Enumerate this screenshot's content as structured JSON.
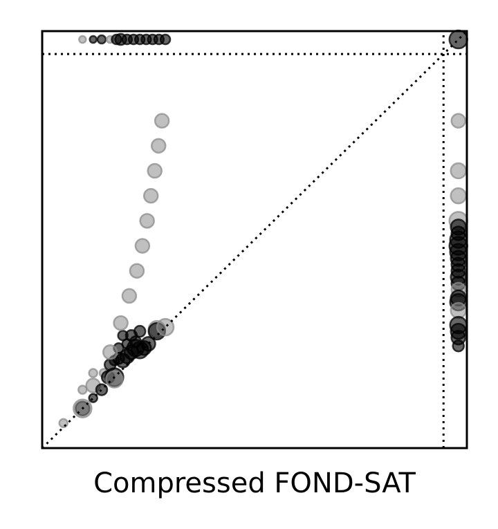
{
  "chart_data": {
    "type": "scatter",
    "title": "",
    "xlabel": "Compressed FOND-SAT",
    "ylabel": "",
    "xlim": [
      0,
      100
    ],
    "ylim": [
      0,
      100
    ],
    "grid": false,
    "legend": "none",
    "timeout_line": 94.5,
    "timeout_value": 98,
    "diagonal": true,
    "colors": {
      "dark": "#000000",
      "light": "#8c8c8c"
    },
    "series": [
      {
        "points": [
          {
            "x": 5,
            "y": 6,
            "s": 6,
            "c": "light"
          },
          {
            "x": 9.5,
            "y": 9.5,
            "s": 10,
            "c": "dark"
          },
          {
            "x": 9.5,
            "y": 9.5,
            "s": 13,
            "c": "light"
          },
          {
            "x": 12,
            "y": 12,
            "s": 6,
            "c": "dark"
          },
          {
            "x": 9.5,
            "y": 14,
            "s": 6,
            "c": "light"
          },
          {
            "x": 12,
            "y": 15,
            "s": 10,
            "c": "light"
          },
          {
            "x": 14,
            "y": 14,
            "s": 8,
            "c": "dark"
          },
          {
            "x": 12,
            "y": 18,
            "s": 6,
            "c": "light"
          },
          {
            "x": 14.5,
            "y": 18,
            "s": 6,
            "c": "light"
          },
          {
            "x": 15.5,
            "y": 17,
            "s": 9,
            "c": "dark"
          },
          {
            "x": 17,
            "y": 17,
            "s": 13,
            "c": "dark"
          },
          {
            "x": 17,
            "y": 16.5,
            "s": 12,
            "c": "light"
          },
          {
            "x": 16,
            "y": 20,
            "s": 8,
            "c": "dark"
          },
          {
            "x": 17,
            "y": 21,
            "s": 7,
            "c": "dark"
          },
          {
            "x": 18,
            "y": 21.5,
            "s": 8,
            "c": "dark"
          },
          {
            "x": 19,
            "y": 21,
            "s": 10,
            "c": "dark"
          },
          {
            "x": 20,
            "y": 22,
            "s": 10,
            "c": "dark"
          },
          {
            "x": 21,
            "y": 23,
            "s": 10,
            "c": "dark"
          },
          {
            "x": 22,
            "y": 24,
            "s": 12,
            "c": "dark"
          },
          {
            "x": 23,
            "y": 23.5,
            "s": 12,
            "c": "dark"
          },
          {
            "x": 24,
            "y": 24,
            "s": 10,
            "c": "dark"
          },
          {
            "x": 25,
            "y": 25,
            "s": 10,
            "c": "dark"
          },
          {
            "x": 22,
            "y": 25.5,
            "s": 8,
            "c": "dark"
          },
          {
            "x": 20,
            "y": 25,
            "s": 7,
            "c": "dark"
          },
          {
            "x": 18,
            "y": 24,
            "s": 7,
            "c": "dark"
          },
          {
            "x": 16,
            "y": 23,
            "s": 10,
            "c": "light"
          },
          {
            "x": 19,
            "y": 27,
            "s": 7,
            "c": "dark"
          },
          {
            "x": 21,
            "y": 27,
            "s": 8,
            "c": "dark"
          },
          {
            "x": 23,
            "y": 28,
            "s": 8,
            "c": "dark"
          },
          {
            "x": 27,
            "y": 28.5,
            "s": 12,
            "c": "light"
          },
          {
            "x": 27,
            "y": 28,
            "s": 12,
            "c": "dark"
          },
          {
            "x": 29,
            "y": 29,
            "s": 12,
            "c": "light"
          },
          {
            "x": 18.5,
            "y": 30,
            "s": 10,
            "c": "light"
          },
          {
            "x": 20.5,
            "y": 36.5,
            "s": 10,
            "c": "light"
          },
          {
            "x": 22.3,
            "y": 42.5,
            "s": 10,
            "c": "light"
          },
          {
            "x": 23.6,
            "y": 48.5,
            "s": 10,
            "c": "light"
          },
          {
            "x": 24.7,
            "y": 54.5,
            "s": 10,
            "c": "light"
          },
          {
            "x": 25.6,
            "y": 60.5,
            "s": 10,
            "c": "light"
          },
          {
            "x": 26.5,
            "y": 66.5,
            "s": 10,
            "c": "light"
          },
          {
            "x": 27.4,
            "y": 72.5,
            "s": 10,
            "c": "light"
          },
          {
            "x": 28.2,
            "y": 78.5,
            "s": 10,
            "c": "light"
          },
          {
            "x": 98,
            "y": 98,
            "s": 13,
            "c": "dark"
          },
          {
            "x": 98,
            "y": 78.5,
            "s": 10,
            "c": "light"
          },
          {
            "x": 98,
            "y": 66.5,
            "s": 11,
            "c": "light"
          },
          {
            "x": 98,
            "y": 60.5,
            "s": 11,
            "c": "light"
          },
          {
            "x": 98,
            "y": 54.5,
            "s": 13,
            "c": "light"
          },
          {
            "x": 98,
            "y": 53,
            "s": 11,
            "c": "dark"
          },
          {
            "x": 98,
            "y": 51.5,
            "s": 10,
            "c": "dark"
          },
          {
            "x": 98,
            "y": 50,
            "s": 12,
            "c": "dark"
          },
          {
            "x": 98,
            "y": 48.5,
            "s": 13,
            "c": "dark"
          },
          {
            "x": 98,
            "y": 47,
            "s": 12,
            "c": "dark"
          },
          {
            "x": 98,
            "y": 45.5,
            "s": 11,
            "c": "dark"
          },
          {
            "x": 98,
            "y": 44,
            "s": 10,
            "c": "dark"
          },
          {
            "x": 98,
            "y": 42.5,
            "s": 10,
            "c": "dark"
          },
          {
            "x": 98,
            "y": 41,
            "s": 11,
            "c": "dark"
          },
          {
            "x": 98,
            "y": 39.5,
            "s": 10,
            "c": "dark"
          },
          {
            "x": 98,
            "y": 38,
            "s": 10,
            "c": "light"
          },
          {
            "x": 98,
            "y": 36,
            "s": 11,
            "c": "dark"
          },
          {
            "x": 98,
            "y": 35,
            "s": 12,
            "c": "dark"
          },
          {
            "x": 98,
            "y": 33,
            "s": 11,
            "c": "light"
          },
          {
            "x": 98,
            "y": 29.5,
            "s": 12,
            "c": "dark"
          },
          {
            "x": 98,
            "y": 28,
            "s": 11,
            "c": "dark"
          },
          {
            "x": 98,
            "y": 26.5,
            "s": 10,
            "c": "dark"
          },
          {
            "x": 98,
            "y": 24.5,
            "s": 8,
            "c": "dark"
          },
          {
            "x": 9.5,
            "y": 98,
            "s": 5,
            "c": "light"
          },
          {
            "x": 12,
            "y": 98,
            "s": 5,
            "c": "dark"
          },
          {
            "x": 14,
            "y": 98,
            "s": 6,
            "c": "dark"
          },
          {
            "x": 16,
            "y": 98,
            "s": 5,
            "c": "light"
          },
          {
            "x": 17.5,
            "y": 98,
            "s": 7,
            "c": "dark"
          },
          {
            "x": 18.5,
            "y": 98,
            "s": 8,
            "c": "dark"
          },
          {
            "x": 20,
            "y": 98,
            "s": 7,
            "c": "dark"
          },
          {
            "x": 21.5,
            "y": 98,
            "s": 7,
            "c": "dark"
          },
          {
            "x": 23,
            "y": 98,
            "s": 7,
            "c": "dark"
          },
          {
            "x": 24.5,
            "y": 98,
            "s": 7,
            "c": "dark"
          },
          {
            "x": 26,
            "y": 98,
            "s": 7,
            "c": "dark"
          },
          {
            "x": 27.5,
            "y": 98,
            "s": 7,
            "c": "dark"
          },
          {
            "x": 29,
            "y": 98,
            "s": 7,
            "c": "dark"
          }
        ]
      }
    ]
  }
}
